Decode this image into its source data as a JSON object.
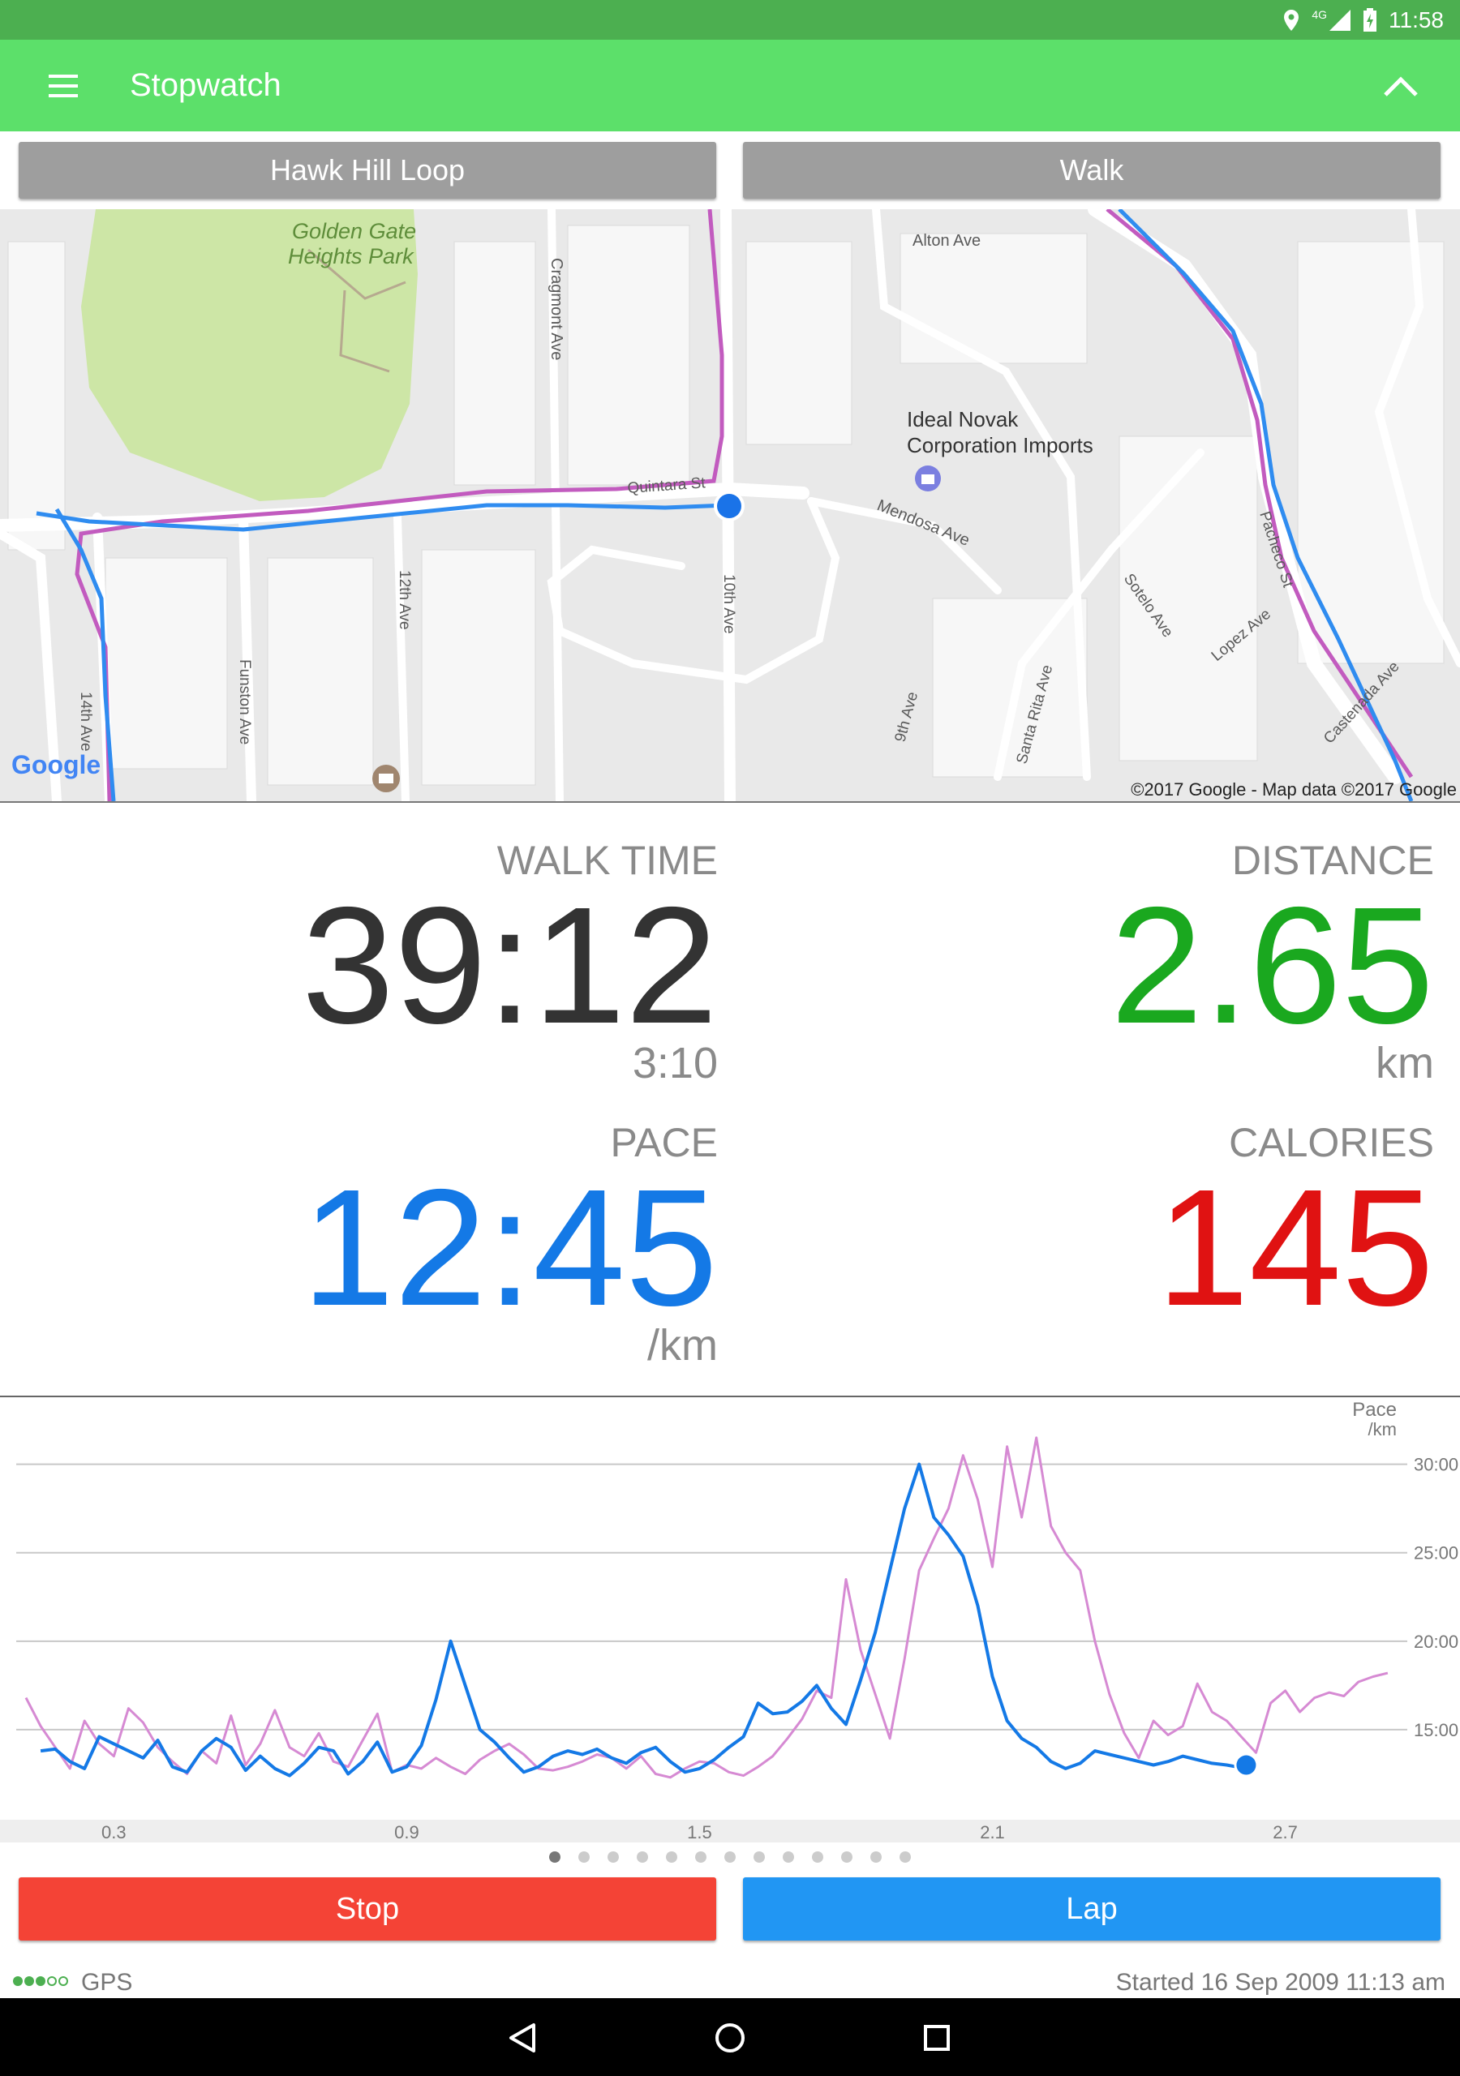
{
  "status": {
    "time": "11:58",
    "network": "4G"
  },
  "appbar": {
    "title": "Stopwatch"
  },
  "selectors": {
    "route": "Hawk Hill Loop",
    "activity": "Walk"
  },
  "map": {
    "labels": {
      "park": "Golden Gate Heights Park",
      "alton": "Alton Ave",
      "cragmont": "Cragmont Ave",
      "poi": "Ideal Novak Corporation Imports",
      "quintara": "Quintara St",
      "mendosa": "Mendosa Ave",
      "pacheco": "Pacheco St",
      "sotelo": "Sotelo Ave",
      "lopez": "Lopez Ave",
      "castenada": "Castenada Ave",
      "santa_rita": "Santa Rita Ave",
      "ninth": "9th Ave",
      "tenth": "10th Ave",
      "twelfth": "12th Ave",
      "fourteenth": "14th Ave",
      "funston": "Funston Ave"
    },
    "logo": "Google",
    "attribution": "©2017 Google - Map data ©2017 Google"
  },
  "stats": {
    "time_label": "WALK TIME",
    "time_value": "39:12",
    "time_sub": "3:10",
    "distance_label": "DISTANCE",
    "distance_value": "2.65",
    "distance_unit": "km",
    "pace_label": "PACE",
    "pace_value": "12:45",
    "pace_unit": "/km",
    "calories_label": "CALORIES",
    "calories_value": "145"
  },
  "colors": {
    "appbar": "#5ce06a",
    "statusbar": "#4caf50",
    "distance": "#1aa81f",
    "pace": "#1479e6",
    "calories": "#e01212",
    "stop": "#f44336",
    "lap": "#2196f3",
    "route_pink": "#c25bbf",
    "route_blue": "#2f8cf0"
  },
  "chart_data": {
    "type": "line",
    "title": "",
    "ylabel": "Pace /km",
    "xlim": [
      0.1,
      2.95
    ],
    "ylim": [
      10,
      32
    ],
    "y_ticks": [
      "30:00",
      "25:00",
      "20:00",
      "15:00"
    ],
    "y_tick_values": [
      30,
      25,
      20,
      15
    ],
    "x_ticks": [
      "0.3",
      "0.9",
      "1.5",
      "2.1",
      "2.7"
    ],
    "x_tick_values": [
      0.3,
      0.9,
      1.5,
      2.1,
      2.7
    ],
    "series": [
      {
        "color": "#d68ad3",
        "x": [
          0.12,
          0.15,
          0.18,
          0.21,
          0.24,
          0.27,
          0.3,
          0.33,
          0.36,
          0.39,
          0.42,
          0.45,
          0.48,
          0.51,
          0.54,
          0.57,
          0.6,
          0.63,
          0.66,
          0.69,
          0.72,
          0.75,
          0.78,
          0.81,
          0.84,
          0.87,
          0.9,
          0.93,
          0.96,
          0.99,
          1.02,
          1.05,
          1.08,
          1.11,
          1.14,
          1.17,
          1.2,
          1.23,
          1.26,
          1.29,
          1.32,
          1.35,
          1.38,
          1.41,
          1.44,
          1.47,
          1.5,
          1.53,
          1.56,
          1.59,
          1.62,
          1.65,
          1.68,
          1.71,
          1.74,
          1.77,
          1.8,
          1.83,
          1.86,
          1.89,
          1.92,
          1.95,
          1.98,
          2.01,
          2.04,
          2.07,
          2.1,
          2.13,
          2.16,
          2.19,
          2.22,
          2.25,
          2.28,
          2.31,
          2.34,
          2.37,
          2.4,
          2.43,
          2.46,
          2.49,
          2.52,
          2.55,
          2.58,
          2.61,
          2.64,
          2.67,
          2.7,
          2.73,
          2.76,
          2.79,
          2.82,
          2.85,
          2.88,
          2.91
        ],
        "y": [
          16.8,
          15.2,
          14.0,
          12.8,
          15.5,
          14.2,
          13.5,
          16.2,
          15.4,
          14.0,
          13.2,
          12.5,
          13.8,
          13.1,
          15.8,
          13.0,
          14.2,
          16.1,
          14.0,
          13.5,
          14.8,
          13.2,
          12.9,
          14.4,
          15.9,
          12.6,
          13.0,
          12.8,
          13.4,
          12.9,
          12.5,
          13.3,
          13.8,
          14.2,
          13.6,
          12.8,
          12.7,
          12.9,
          13.2,
          13.6,
          13.4,
          12.8,
          13.5,
          12.5,
          12.3,
          12.8,
          13.2,
          13.1,
          12.6,
          12.4,
          12.9,
          13.5,
          14.5,
          15.6,
          17.2,
          16.8,
          23.5,
          19.5,
          17.0,
          14.5,
          19.0,
          24.0,
          25.8,
          27.5,
          30.5,
          28.0,
          24.2,
          31.0,
          27.0,
          31.5,
          26.5,
          25.0,
          24.0,
          20.0,
          17.0,
          14.8,
          13.4,
          15.5,
          14.7,
          15.2,
          17.6,
          16.0,
          15.5,
          14.6,
          13.7,
          16.5,
          17.2,
          16.0,
          16.8,
          17.1,
          16.9,
          17.7,
          18.0,
          18.2
        ]
      },
      {
        "color": "#1479e6",
        "x": [
          0.15,
          0.18,
          0.21,
          0.24,
          0.27,
          0.3,
          0.33,
          0.36,
          0.39,
          0.42,
          0.45,
          0.48,
          0.51,
          0.54,
          0.57,
          0.6,
          0.63,
          0.66,
          0.69,
          0.72,
          0.75,
          0.78,
          0.81,
          0.84,
          0.87,
          0.9,
          0.93,
          0.96,
          0.99,
          1.02,
          1.05,
          1.08,
          1.11,
          1.14,
          1.17,
          1.2,
          1.23,
          1.26,
          1.29,
          1.32,
          1.35,
          1.38,
          1.41,
          1.44,
          1.47,
          1.5,
          1.53,
          1.56,
          1.59,
          1.62,
          1.65,
          1.68,
          1.71,
          1.74,
          1.77,
          1.8,
          1.83,
          1.86,
          1.89,
          1.92,
          1.95,
          1.98,
          2.01,
          2.04,
          2.07,
          2.1,
          2.13,
          2.16,
          2.19,
          2.22,
          2.25,
          2.28,
          2.31,
          2.34,
          2.37,
          2.4,
          2.43,
          2.46,
          2.49,
          2.52,
          2.55,
          2.58,
          2.6,
          2.63
        ],
        "y": [
          13.8,
          13.9,
          13.2,
          12.8,
          14.6,
          14.2,
          13.8,
          13.4,
          14.4,
          12.9,
          12.6,
          13.8,
          14.5,
          14.0,
          12.7,
          13.5,
          12.8,
          12.4,
          13.1,
          14.0,
          13.8,
          12.5,
          13.2,
          14.3,
          12.6,
          12.9,
          14.1,
          16.7,
          20.0,
          17.5,
          15.0,
          14.3,
          13.4,
          12.6,
          12.9,
          13.5,
          13.8,
          13.6,
          13.9,
          13.4,
          13.1,
          13.7,
          14.0,
          13.2,
          12.6,
          12.8,
          13.3,
          14.0,
          14.6,
          16.5,
          15.9,
          16.0,
          16.6,
          17.5,
          16.2,
          15.3,
          17.8,
          20.5,
          24.0,
          27.5,
          30.0,
          27.0,
          26.0,
          24.8,
          22.0,
          18.0,
          15.5,
          14.5,
          14.0,
          13.2,
          12.8,
          13.1,
          13.8,
          13.6,
          13.4,
          13.2,
          13.0,
          13.2,
          13.5,
          13.3,
          13.1,
          13.0,
          12.9,
          13.0
        ]
      }
    ],
    "marker": {
      "x": 2.62,
      "y": 13.0
    }
  },
  "pager": {
    "count": 13,
    "active": 0
  },
  "buttons": {
    "stop": "Stop",
    "lap": "Lap"
  },
  "footer": {
    "gps": "GPS",
    "started": "Started 16 Sep 2009 11:13 am"
  }
}
